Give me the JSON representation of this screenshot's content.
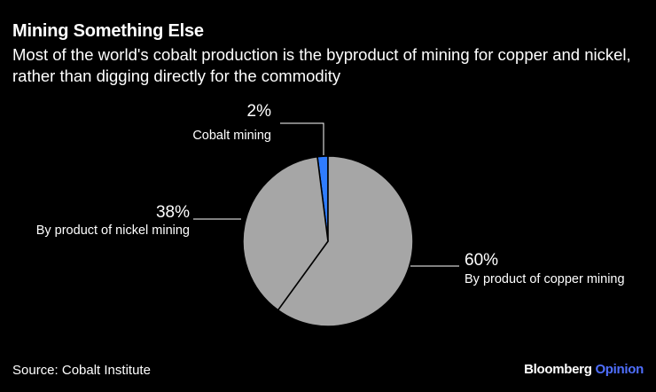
{
  "header": {
    "title": "Mining Something Else",
    "subtitle": "Most of the world's cobalt production is the byproduct of mining for copper and nickel, rather than digging directly for the commodity"
  },
  "footer": {
    "source": "Source: Cobalt Institute",
    "brand_primary": "Bloomberg",
    "brand_secondary": "Opinion"
  },
  "colors": {
    "background": "#000000",
    "slice_gray": "#a6a6a6",
    "slice_highlight": "#2f7cff",
    "brand_accent": "#4f6fff"
  },
  "chart_data": {
    "type": "pie",
    "slices": [
      {
        "label": "Cobalt mining",
        "value": 2,
        "value_label": "2%",
        "color": "#2f7cff"
      },
      {
        "label": "By product of copper mining",
        "value": 60,
        "value_label": "60%",
        "color": "#a6a6a6"
      },
      {
        "label": "By product of nickel mining",
        "value": 38,
        "value_label": "38%",
        "color": "#a6a6a6"
      }
    ]
  }
}
